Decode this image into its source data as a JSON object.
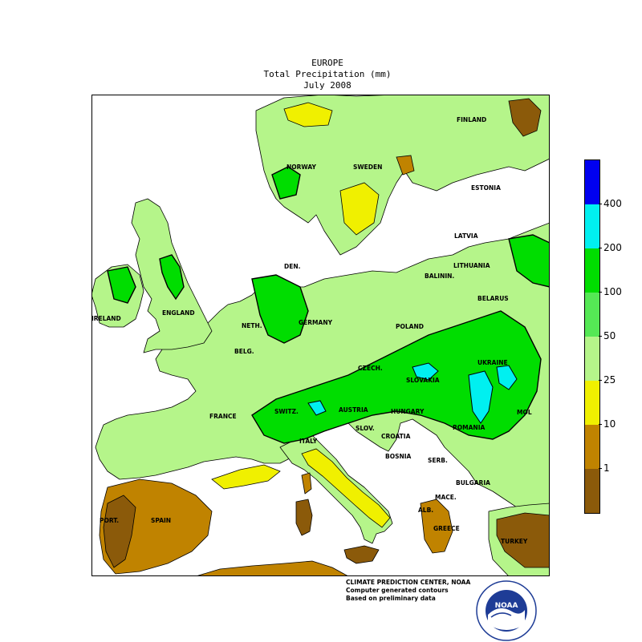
{
  "header": {
    "region": "EUROPE",
    "variable": "Total Precipitation (mm)",
    "period": "July 2008"
  },
  "map": {
    "countries": [
      "FINLAND",
      "NORWAY",
      "SWEDEN",
      "ESTONIA",
      "LATVIA",
      "LITHUANIA",
      "DEN.",
      "BALININ.",
      "BELARUS",
      "ENGLAND",
      "IRELAND",
      "NETH.",
      "GERMANY",
      "POLAND",
      "BELG.",
      "CZECH.",
      "SLOVAKIA",
      "UKRAINE",
      "FRANCE",
      "SWITZ.",
      "AUSTRIA",
      "HUNGARY",
      "MOL",
      "SLOV.",
      "CROATIA",
      "ROMANIA",
      "ITALY",
      "BOSNIA",
      "SERB.",
      "BULGARIA",
      "MACE.",
      "ALB.",
      "GREECE",
      "PORT.",
      "SPAIN",
      "TURKEY"
    ]
  },
  "legend": {
    "labels": [
      "400",
      "200",
      "100",
      "50",
      "25",
      "10",
      "1"
    ],
    "colors": [
      "#0000f0",
      "#00f0f0",
      "#00dd00",
      "#55e855",
      "#b5f58a",
      "#f0f000",
      "#c08300",
      "#8b5a0a"
    ]
  },
  "credits": {
    "line1": "CLIMATE PREDICTION CENTER, NOAA",
    "line2": "Computer generated contours",
    "line3": "Based on preliminary data"
  },
  "logo": {
    "text": "NOAA"
  }
}
